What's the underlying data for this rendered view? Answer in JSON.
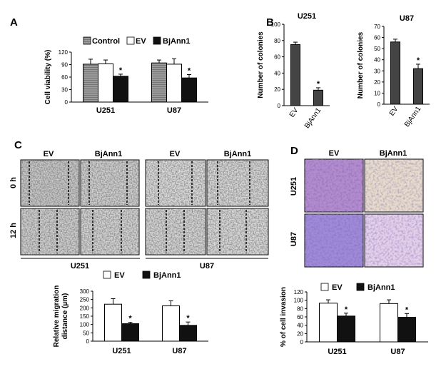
{
  "panels": {
    "a": "A",
    "b": "B",
    "c": "C",
    "d": "D"
  },
  "legend_a": {
    "control": "Control",
    "ev": "EV",
    "bjann1": "BjAnn1"
  },
  "legend_ev_bj": {
    "ev": "EV",
    "bjann1": "BjAnn1"
  },
  "sig": "*",
  "panel_c": {
    "col_labels": [
      "EV",
      "BjAnn1",
      "EV",
      "BjAnn1"
    ],
    "row_labels": [
      "0 h",
      "12 h"
    ],
    "groups": [
      "U251",
      "U87"
    ]
  },
  "panel_d": {
    "col_labels": [
      "EV",
      "BjAnn1"
    ],
    "row_labels": [
      "U251",
      "U87"
    ]
  },
  "colors": {
    "control": "#8c8c8c",
    "ev": "#ffffff",
    "bjann1": "#111111",
    "bar_b": "#444444",
    "stain_dark": "#5a3d9a",
    "stain_light": "#c9a7d6"
  },
  "chart_data": [
    {
      "id": "A",
      "type": "bar",
      "ylabel": "Cell viability (%)",
      "ylim": [
        0,
        120
      ],
      "yticks": [
        "0",
        "30",
        "60",
        "90",
        "120"
      ],
      "categories": [
        "U251",
        "U87"
      ],
      "series": [
        {
          "name": "Control",
          "values": [
            91,
            94
          ],
          "err": [
            12,
            7
          ]
        },
        {
          "name": "EV",
          "values": [
            92,
            91
          ],
          "err": [
            9,
            13
          ]
        },
        {
          "name": "BjAnn1",
          "values": [
            62,
            58
          ],
          "err": [
            5,
            8
          ]
        }
      ],
      "significance": [
        "*",
        "*"
      ]
    },
    {
      "id": "B-U251",
      "type": "bar",
      "title": "U251",
      "ylabel": "Number of colonies",
      "ylim": [
        0,
        100
      ],
      "yticks": [
        "0",
        "20",
        "40",
        "60",
        "80",
        "100"
      ],
      "categories": [
        "EV",
        "BjAnn1"
      ],
      "values": [
        75,
        19
      ],
      "err": [
        3,
        3
      ],
      "significance": [
        "",
        "*"
      ]
    },
    {
      "id": "B-U87",
      "type": "bar",
      "title": "U87",
      "ylabel": "Number of colonies",
      "ylim": [
        0,
        70
      ],
      "yticks": [
        "0",
        "10",
        "20",
        "30",
        "40",
        "50",
        "60",
        "70"
      ],
      "categories": [
        "EV",
        "BjAnn1"
      ],
      "values": [
        56,
        32
      ],
      "err": [
        2.5,
        4
      ],
      "significance": [
        "",
        "*"
      ]
    },
    {
      "id": "C",
      "type": "bar",
      "ylabel": "Relative migration distance (µm)",
      "ylabel_lines": [
        "Relative migration",
        "distance (µm)"
      ],
      "ylim": [
        0,
        300
      ],
      "yticks": [
        "0",
        "50",
        "100",
        "150",
        "200",
        "250",
        "300"
      ],
      "categories": [
        "U251",
        "U87"
      ],
      "series": [
        {
          "name": "EV",
          "values": [
            222,
            212
          ],
          "err": [
            33,
            30
          ]
        },
        {
          "name": "BjAnn1",
          "values": [
            105,
            95
          ],
          "err": [
            8,
            20
          ]
        }
      ],
      "significance": [
        "*",
        "*"
      ]
    },
    {
      "id": "D",
      "type": "bar",
      "ylabel": "% of cell invasion",
      "ylim": [
        0,
        120
      ],
      "yticks": [
        "0",
        "20",
        "40",
        "60",
        "80",
        "100",
        "120"
      ],
      "categories": [
        "U251",
        "U87"
      ],
      "series": [
        {
          "name": "EV",
          "values": [
            93,
            92
          ],
          "err": [
            8,
            9
          ]
        },
        {
          "name": "BjAnn1",
          "values": [
            62,
            59
          ],
          "err": [
            7,
            9
          ]
        }
      ],
      "significance": [
        "*",
        "*"
      ]
    }
  ]
}
